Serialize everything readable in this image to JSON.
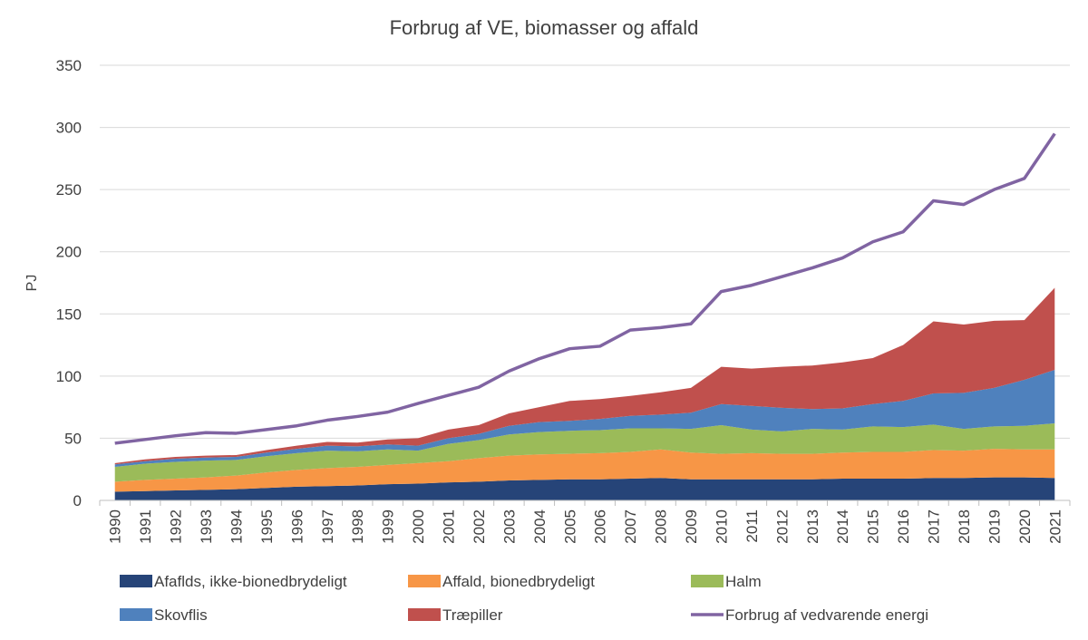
{
  "chart_data": {
    "type": "area",
    "title": "Forbrug af VE, biomasser og affald",
    "xlabel": "",
    "ylabel": "PJ",
    "ylim": [
      0,
      350
    ],
    "yticks": [
      0,
      50,
      100,
      150,
      200,
      250,
      300,
      350
    ],
    "grid": true,
    "legend_position": "bottom",
    "x": [
      "1990",
      "1991",
      "1992",
      "1993",
      "1994",
      "1995",
      "1996",
      "1997",
      "1998",
      "1999",
      "2000",
      "2001",
      "2002",
      "2003",
      "2004",
      "2005",
      "2006",
      "2007",
      "2008",
      "2009",
      "2010",
      "2011",
      "2012",
      "2013",
      "2014",
      "2015",
      "2016",
      "2017",
      "2018",
      "2019",
      "2020",
      "2021"
    ],
    "series": [
      {
        "name": "Afaflds, ikke-bionedbrydeligt",
        "kind": "stacked-area",
        "color": "#264478",
        "values": [
          7,
          7.5,
          8,
          8.5,
          9,
          10,
          11,
          11.5,
          12,
          13,
          13.5,
          14.5,
          15,
          16,
          16.5,
          17,
          17,
          17.5,
          18,
          17,
          17,
          17,
          17,
          17,
          17.5,
          17.5,
          17.5,
          18,
          18,
          18.5,
          18.5,
          18
        ]
      },
      {
        "name": "Affald, bionedbrydeligt",
        "kind": "stacked-area",
        "color": "#f79646",
        "values": [
          8,
          9,
          9.5,
          10,
          11,
          12.5,
          13.5,
          14.5,
          15,
          15.5,
          16.5,
          17,
          19,
          20,
          20.5,
          20.5,
          21,
          21.5,
          23,
          21.5,
          20.5,
          21,
          20.5,
          20.5,
          21,
          21.5,
          21.5,
          22.5,
          22,
          23,
          22.5,
          23
        ]
      },
      {
        "name": "Halm",
        "kind": "stacked-area",
        "color": "#9bbb59",
        "values": [
          12,
          13,
          13.5,
          13.5,
          12.5,
          13,
          13.5,
          14,
          12.5,
          12.5,
          10,
          14,
          14.5,
          17,
          18,
          18.5,
          18.5,
          19,
          17,
          19,
          23,
          19,
          18,
          20,
          18.5,
          20.5,
          20,
          20.5,
          17.5,
          18,
          19,
          21
        ]
      },
      {
        "name": "Skovflis",
        "kind": "stacked-area",
        "color": "#4f81bd",
        "values": [
          2,
          2,
          2.5,
          2.5,
          2.5,
          3,
          3.5,
          4,
          4,
          4,
          4,
          4.5,
          5,
          7,
          8,
          8,
          9,
          10,
          11,
          13,
          17,
          19,
          19,
          16,
          17,
          18,
          21,
          25,
          29,
          31,
          37,
          43
        ]
      },
      {
        "name": "Træpiller",
        "kind": "stacked-area",
        "color": "#c0504d",
        "values": [
          1,
          1.5,
          1.5,
          1.5,
          1.5,
          2,
          2.5,
          3,
          3,
          4,
          6,
          7,
          7,
          10,
          12,
          16,
          16,
          16,
          18,
          20,
          30,
          30,
          33,
          35,
          37,
          37,
          45,
          58,
          55,
          54,
          48,
          66
        ]
      },
      {
        "name": "Forbrug af vedvarende energi",
        "kind": "line",
        "color": "#8064a2",
        "values": [
          46,
          49,
          52,
          54.5,
          54,
          57,
          60,
          64.5,
          67.5,
          71,
          78,
          84.5,
          91,
          104,
          114,
          122,
          124,
          137,
          139,
          142,
          168,
          173,
          180,
          187,
          195,
          208,
          216,
          241,
          238,
          250,
          259,
          295
        ]
      }
    ]
  }
}
